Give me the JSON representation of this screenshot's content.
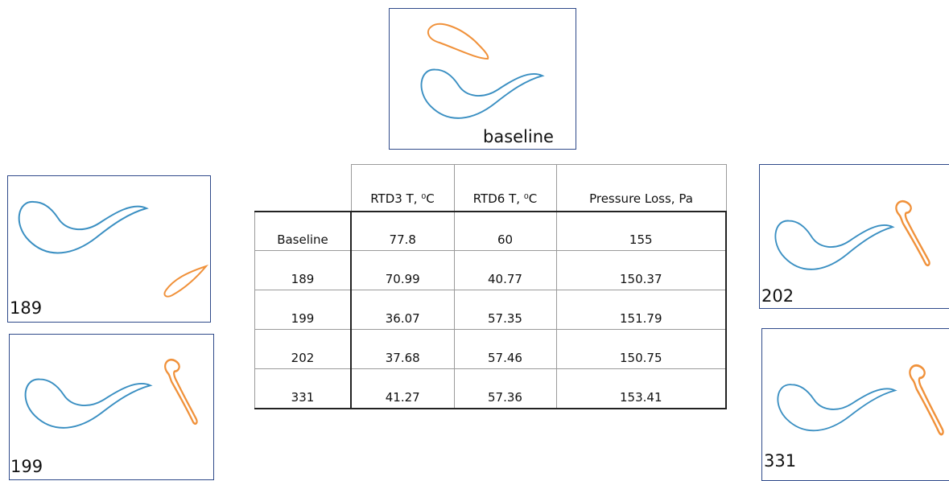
{
  "panels": [
    {
      "label": "baseline"
    },
    {
      "label": "189"
    },
    {
      "label": "199"
    },
    {
      "label": "202"
    },
    {
      "label": "331"
    }
  ],
  "table": {
    "headers": [
      "RTD3 T, ⁰C",
      "RTD6 T, ⁰C",
      "Pressure Loss, Pa"
    ],
    "rows": [
      [
        "Baseline",
        "77.8",
        "60",
        "155"
      ],
      [
        "189",
        "70.99",
        "40.77",
        "150.37"
      ],
      [
        "199",
        "36.07",
        "57.35",
        "151.79"
      ],
      [
        "202",
        "37.68",
        "57.46",
        "150.75"
      ],
      [
        "331",
        "41.27",
        "57.36",
        "153.41"
      ]
    ]
  }
}
